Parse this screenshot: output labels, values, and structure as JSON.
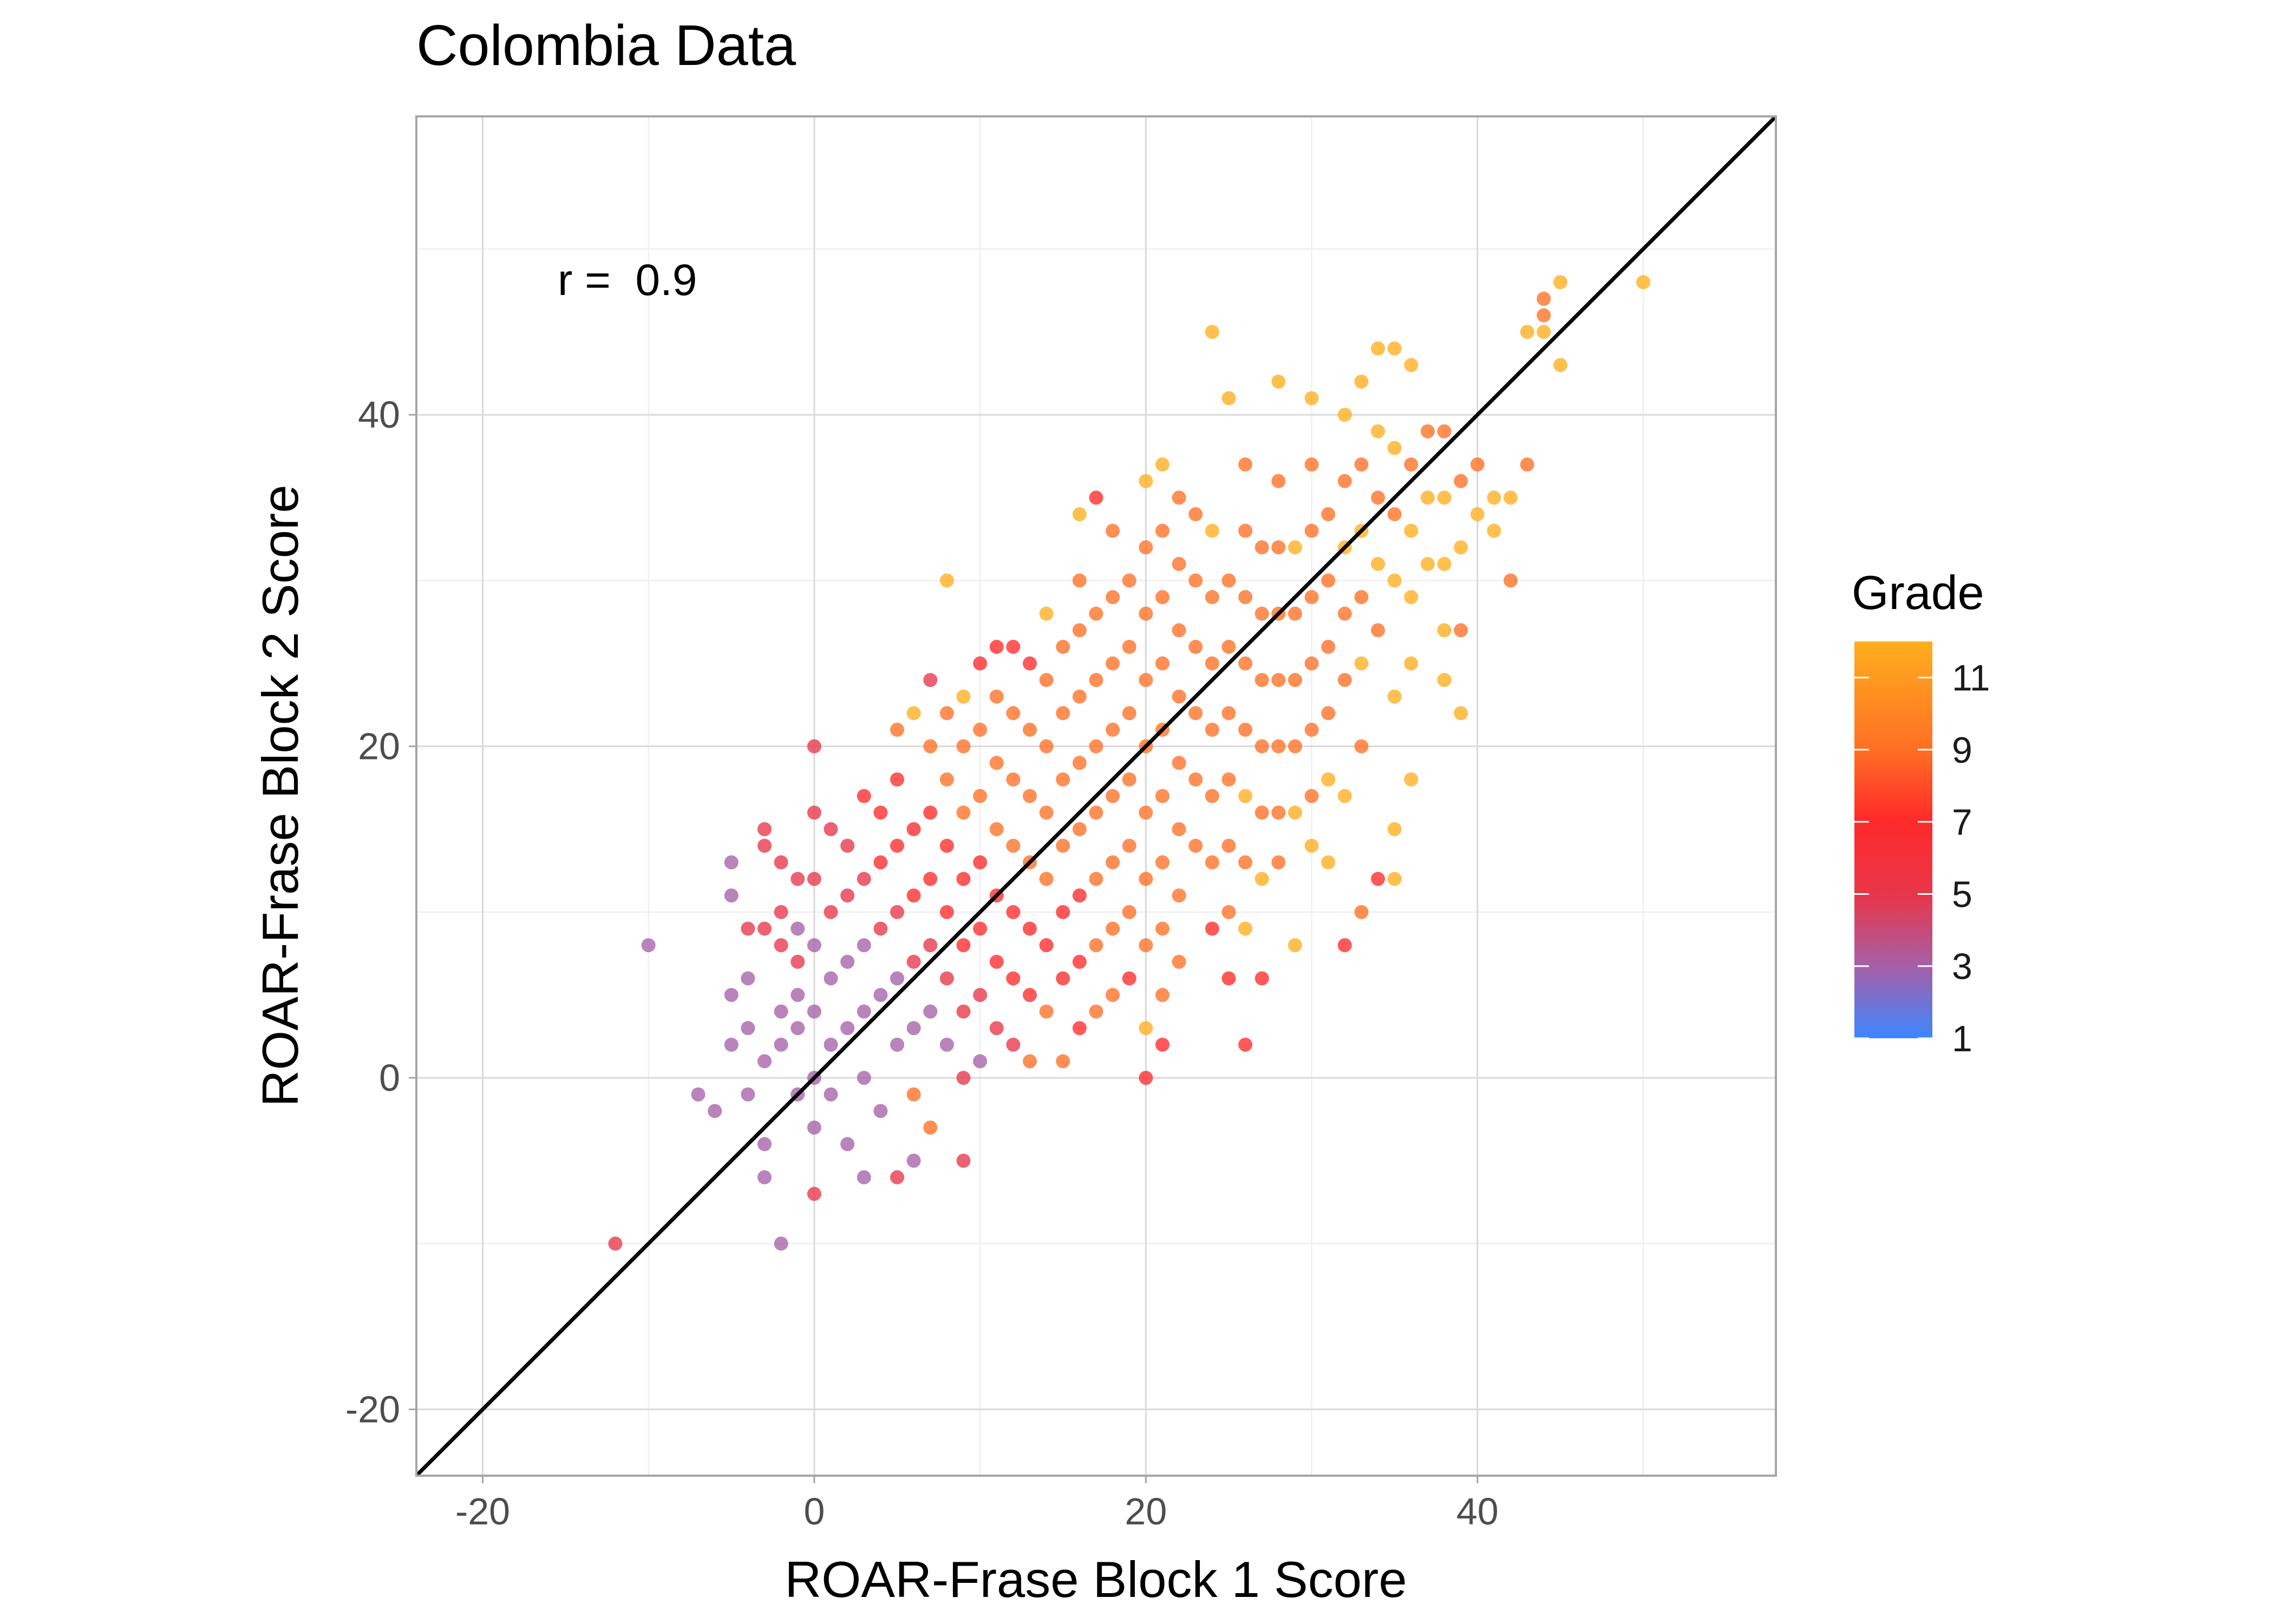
{
  "chart_data": {
    "type": "scatter",
    "title": "Colombia Data",
    "xlabel": "ROAR-Frase Block 1 Score",
    "ylabel": "ROAR-Frase Block 2 Score",
    "xlim": [
      -24,
      58
    ],
    "ylim": [
      -24,
      58
    ],
    "x_ticks": [
      -20,
      0,
      20,
      40
    ],
    "y_ticks": [
      -20,
      0,
      20,
      40
    ],
    "grid": true,
    "annotation": "r =  0.9",
    "reference_line": {
      "type": "identity",
      "slope": 1,
      "intercept": 0,
      "color": "#000000"
    },
    "legend": {
      "title": "Grade",
      "position": "right",
      "type": "colorbar",
      "range": [
        1,
        12
      ],
      "ticks": [
        1,
        3,
        5,
        7,
        9,
        11
      ],
      "colors": {
        "1": "#3d86ff",
        "3": "#a560a8",
        "5": "#e8364a",
        "7": "#ff2a2a",
        "9": "#ff7024",
        "11": "#ffae1e"
      }
    },
    "points": [
      [
        -12,
        -10,
        5
      ],
      [
        -10,
        8,
        3
      ],
      [
        -7,
        -1,
        3
      ],
      [
        -6,
        -2,
        3
      ],
      [
        -5,
        5,
        3
      ],
      [
        -5,
        11,
        3
      ],
      [
        -5,
        13,
        3
      ],
      [
        -5,
        2,
        3
      ],
      [
        -4,
        -1,
        3
      ],
      [
        -4,
        3,
        3
      ],
      [
        -4,
        6,
        3
      ],
      [
        -4,
        9,
        5
      ],
      [
        -3,
        -4,
        3
      ],
      [
        -3,
        -6,
        3
      ],
      [
        -3,
        1,
        3
      ],
      [
        -3,
        9,
        5
      ],
      [
        -3,
        14,
        5
      ],
      [
        -3,
        15,
        5
      ],
      [
        -2,
        -10,
        3
      ],
      [
        -2,
        2,
        3
      ],
      [
        -2,
        4,
        3
      ],
      [
        -2,
        8,
        5
      ],
      [
        -2,
        10,
        5
      ],
      [
        -2,
        13,
        5
      ],
      [
        -1,
        -1,
        3
      ],
      [
        -1,
        3,
        3
      ],
      [
        -1,
        5,
        3
      ],
      [
        -1,
        7,
        5
      ],
      [
        -1,
        9,
        3
      ],
      [
        -1,
        12,
        5
      ],
      [
        0,
        20,
        5
      ],
      [
        0,
        16,
        5
      ],
      [
        0,
        12,
        5
      ],
      [
        0,
        8,
        3
      ],
      [
        0,
        4,
        3
      ],
      [
        0,
        0,
        3
      ],
      [
        0,
        -3,
        3
      ],
      [
        0,
        -7,
        5
      ],
      [
        1,
        15,
        5
      ],
      [
        1,
        10,
        5
      ],
      [
        1,
        6,
        3
      ],
      [
        1,
        2,
        3
      ],
      [
        1,
        -1,
        3
      ],
      [
        2,
        -4,
        3
      ],
      [
        2,
        3,
        3
      ],
      [
        2,
        7,
        3
      ],
      [
        2,
        11,
        5
      ],
      [
        2,
        14,
        5
      ],
      [
        3,
        17,
        7
      ],
      [
        3,
        12,
        5
      ],
      [
        3,
        8,
        3
      ],
      [
        3,
        4,
        3
      ],
      [
        3,
        0,
        3
      ],
      [
        3,
        -6,
        3
      ],
      [
        4,
        -2,
        3
      ],
      [
        4,
        5,
        3
      ],
      [
        4,
        9,
        5
      ],
      [
        4,
        13,
        7
      ],
      [
        4,
        16,
        7
      ],
      [
        5,
        21,
        9
      ],
      [
        5,
        18,
        7
      ],
      [
        5,
        14,
        7
      ],
      [
        5,
        10,
        5
      ],
      [
        5,
        6,
        3
      ],
      [
        5,
        2,
        3
      ],
      [
        5,
        -6,
        5
      ],
      [
        6,
        -1,
        9
      ],
      [
        6,
        -5,
        3
      ],
      [
        6,
        3,
        3
      ],
      [
        6,
        7,
        5
      ],
      [
        6,
        11,
        7
      ],
      [
        6,
        15,
        7
      ],
      [
        6,
        22,
        11
      ],
      [
        7,
        24,
        5
      ],
      [
        7,
        20,
        9
      ],
      [
        7,
        16,
        7
      ],
      [
        7,
        12,
        7
      ],
      [
        7,
        8,
        5
      ],
      [
        7,
        4,
        3
      ],
      [
        7,
        -3,
        9
      ],
      [
        8,
        30,
        11
      ],
      [
        8,
        22,
        9
      ],
      [
        8,
        18,
        9
      ],
      [
        8,
        14,
        7
      ],
      [
        8,
        10,
        7
      ],
      [
        8,
        6,
        5
      ],
      [
        8,
        2,
        3
      ],
      [
        9,
        -5,
        5
      ],
      [
        9,
        0,
        5
      ],
      [
        9,
        4,
        5
      ],
      [
        9,
        8,
        7
      ],
      [
        9,
        12,
        7
      ],
      [
        9,
        16,
        9
      ],
      [
        9,
        20,
        9
      ],
      [
        9,
        23,
        11
      ],
      [
        10,
        25,
        7
      ],
      [
        10,
        21,
        9
      ],
      [
        10,
        17,
        9
      ],
      [
        10,
        13,
        7
      ],
      [
        10,
        9,
        7
      ],
      [
        10,
        5,
        5
      ],
      [
        10,
        1,
        3
      ],
      [
        11,
        3,
        5
      ],
      [
        11,
        7,
        7
      ],
      [
        11,
        11,
        7
      ],
      [
        11,
        15,
        9
      ],
      [
        11,
        19,
        9
      ],
      [
        11,
        23,
        9
      ],
      [
        11,
        26,
        7
      ],
      [
        12,
        26,
        7
      ],
      [
        12,
        22,
        9
      ],
      [
        12,
        18,
        9
      ],
      [
        12,
        14,
        9
      ],
      [
        12,
        10,
        7
      ],
      [
        12,
        6,
        7
      ],
      [
        12,
        2,
        5
      ],
      [
        13,
        1,
        9
      ],
      [
        13,
        5,
        7
      ],
      [
        13,
        9,
        7
      ],
      [
        13,
        13,
        9
      ],
      [
        13,
        17,
        9
      ],
      [
        13,
        21,
        9
      ],
      [
        13,
        25,
        7
      ],
      [
        14,
        28,
        11
      ],
      [
        14,
        24,
        9
      ],
      [
        14,
        20,
        9
      ],
      [
        14,
        16,
        9
      ],
      [
        14,
        12,
        9
      ],
      [
        14,
        8,
        7
      ],
      [
        14,
        4,
        9
      ],
      [
        15,
        1,
        9
      ],
      [
        15,
        6,
        7
      ],
      [
        15,
        10,
        7
      ],
      [
        15,
        14,
        9
      ],
      [
        15,
        18,
        9
      ],
      [
        15,
        22,
        9
      ],
      [
        15,
        26,
        9
      ],
      [
        16,
        34,
        11
      ],
      [
        16,
        30,
        9
      ],
      [
        16,
        27,
        9
      ],
      [
        16,
        23,
        9
      ],
      [
        16,
        19,
        9
      ],
      [
        16,
        15,
        9
      ],
      [
        16,
        11,
        7
      ],
      [
        16,
        7,
        7
      ],
      [
        16,
        3,
        7
      ],
      [
        17,
        4,
        9
      ],
      [
        17,
        8,
        9
      ],
      [
        17,
        12,
        9
      ],
      [
        17,
        16,
        9
      ],
      [
        17,
        20,
        9
      ],
      [
        17,
        24,
        9
      ],
      [
        17,
        28,
        9
      ],
      [
        17,
        35,
        7
      ],
      [
        18,
        33,
        9
      ],
      [
        18,
        29,
        9
      ],
      [
        18,
        25,
        9
      ],
      [
        18,
        21,
        9
      ],
      [
        18,
        17,
        9
      ],
      [
        18,
        13,
        9
      ],
      [
        18,
        9,
        9
      ],
      [
        18,
        5,
        9
      ],
      [
        19,
        6,
        7
      ],
      [
        19,
        10,
        9
      ],
      [
        19,
        14,
        9
      ],
      [
        19,
        18,
        9
      ],
      [
        19,
        22,
        9
      ],
      [
        19,
        26,
        9
      ],
      [
        19,
        30,
        9
      ],
      [
        20,
        36,
        11
      ],
      [
        20,
        32,
        9
      ],
      [
        20,
        28,
        9
      ],
      [
        20,
        24,
        9
      ],
      [
        20,
        20,
        9
      ],
      [
        20,
        16,
        9
      ],
      [
        20,
        12,
        9
      ],
      [
        20,
        8,
        9
      ],
      [
        20,
        3,
        11
      ],
      [
        20,
        0,
        7
      ],
      [
        21,
        2,
        7
      ],
      [
        21,
        5,
        9
      ],
      [
        21,
        9,
        9
      ],
      [
        21,
        13,
        9
      ],
      [
        21,
        17,
        9
      ],
      [
        21,
        21,
        9
      ],
      [
        21,
        25,
        9
      ],
      [
        21,
        29,
        9
      ],
      [
        21,
        33,
        9
      ],
      [
        21,
        37,
        11
      ],
      [
        22,
        35,
        9
      ],
      [
        22,
        31,
        9
      ],
      [
        22,
        27,
        9
      ],
      [
        22,
        23,
        9
      ],
      [
        22,
        19,
        9
      ],
      [
        22,
        15,
        9
      ],
      [
        22,
        11,
        9
      ],
      [
        22,
        7,
        9
      ],
      [
        23,
        14,
        9
      ],
      [
        23,
        18,
        9
      ],
      [
        23,
        22,
        9
      ],
      [
        23,
        26,
        9
      ],
      [
        23,
        30,
        9
      ],
      [
        23,
        34,
        9
      ],
      [
        24,
        45,
        11
      ],
      [
        24,
        33,
        11
      ],
      [
        24,
        29,
        9
      ],
      [
        24,
        25,
        9
      ],
      [
        24,
        21,
        9
      ],
      [
        24,
        17,
        9
      ],
      [
        24,
        13,
        9
      ],
      [
        24,
        9,
        7
      ],
      [
        25,
        6,
        7
      ],
      [
        25,
        10,
        9
      ],
      [
        25,
        14,
        9
      ],
      [
        25,
        18,
        9
      ],
      [
        25,
        22,
        9
      ],
      [
        25,
        26,
        9
      ],
      [
        25,
        30,
        9
      ],
      [
        25,
        41,
        11
      ],
      [
        26,
        37,
        9
      ],
      [
        26,
        33,
        9
      ],
      [
        26,
        29,
        9
      ],
      [
        26,
        25,
        9
      ],
      [
        26,
        21,
        9
      ],
      [
        26,
        17,
        11
      ],
      [
        26,
        13,
        9
      ],
      [
        26,
        9,
        11
      ],
      [
        26,
        2,
        7
      ],
      [
        27,
        6,
        7
      ],
      [
        27,
        12,
        11
      ],
      [
        27,
        16,
        9
      ],
      [
        27,
        20,
        9
      ],
      [
        27,
        24,
        9
      ],
      [
        27,
        28,
        9
      ],
      [
        27,
        32,
        9
      ],
      [
        28,
        42,
        11
      ],
      [
        28,
        36,
        9
      ],
      [
        28,
        32,
        9
      ],
      [
        28,
        28,
        9
      ],
      [
        28,
        24,
        9
      ],
      [
        28,
        20,
        9
      ],
      [
        28,
        16,
        9
      ],
      [
        28,
        13,
        9
      ],
      [
        29,
        8,
        11
      ],
      [
        29,
        16,
        11
      ],
      [
        29,
        20,
        9
      ],
      [
        29,
        24,
        9
      ],
      [
        29,
        28,
        9
      ],
      [
        29,
        32,
        11
      ],
      [
        30,
        41,
        11
      ],
      [
        30,
        37,
        9
      ],
      [
        30,
        33,
        9
      ],
      [
        30,
        29,
        9
      ],
      [
        30,
        25,
        9
      ],
      [
        30,
        21,
        9
      ],
      [
        30,
        17,
        9
      ],
      [
        30,
        14,
        11
      ],
      [
        31,
        13,
        11
      ],
      [
        31,
        18,
        11
      ],
      [
        31,
        22,
        9
      ],
      [
        31,
        26,
        9
      ],
      [
        31,
        30,
        9
      ],
      [
        31,
        34,
        9
      ],
      [
        32,
        8,
        7
      ],
      [
        32,
        17,
        11
      ],
      [
        32,
        24,
        9
      ],
      [
        32,
        28,
        9
      ],
      [
        32,
        32,
        11
      ],
      [
        32,
        36,
        9
      ],
      [
        32,
        40,
        11
      ],
      [
        33,
        10,
        9
      ],
      [
        33,
        20,
        9
      ],
      [
        33,
        25,
        11
      ],
      [
        33,
        29,
        9
      ],
      [
        33,
        33,
        11
      ],
      [
        33,
        37,
        9
      ],
      [
        33,
        42,
        11
      ],
      [
        34,
        12,
        7
      ],
      [
        34,
        27,
        9
      ],
      [
        34,
        31,
        11
      ],
      [
        34,
        35,
        9
      ],
      [
        34,
        39,
        11
      ],
      [
        34,
        44,
        11
      ],
      [
        35,
        12,
        11
      ],
      [
        35,
        15,
        11
      ],
      [
        35,
        23,
        11
      ],
      [
        35,
        30,
        11
      ],
      [
        35,
        34,
        9
      ],
      [
        35,
        38,
        11
      ],
      [
        35,
        44,
        11
      ],
      [
        36,
        18,
        11
      ],
      [
        36,
        25,
        11
      ],
      [
        36,
        29,
        11
      ],
      [
        36,
        33,
        11
      ],
      [
        36,
        37,
        9
      ],
      [
        36,
        43,
        11
      ],
      [
        37,
        31,
        11
      ],
      [
        37,
        35,
        11
      ],
      [
        37,
        39,
        9
      ],
      [
        38,
        24,
        11
      ],
      [
        38,
        27,
        11
      ],
      [
        38,
        31,
        11
      ],
      [
        38,
        35,
        11
      ],
      [
        38,
        39,
        9
      ],
      [
        39,
        22,
        11
      ],
      [
        39,
        27,
        9
      ],
      [
        39,
        32,
        11
      ],
      [
        39,
        36,
        9
      ],
      [
        40,
        34,
        11
      ],
      [
        40,
        37,
        9
      ],
      [
        41,
        33,
        11
      ],
      [
        41,
        35,
        11
      ],
      [
        42,
        30,
        9
      ],
      [
        42,
        35,
        11
      ],
      [
        43,
        37,
        9
      ],
      [
        43,
        45,
        11
      ],
      [
        44,
        45,
        11
      ],
      [
        44,
        46,
        9
      ],
      [
        44,
        47,
        9
      ],
      [
        45,
        43,
        11
      ],
      [
        45,
        48,
        11
      ],
      [
        50,
        48,
        11
      ]
    ]
  }
}
